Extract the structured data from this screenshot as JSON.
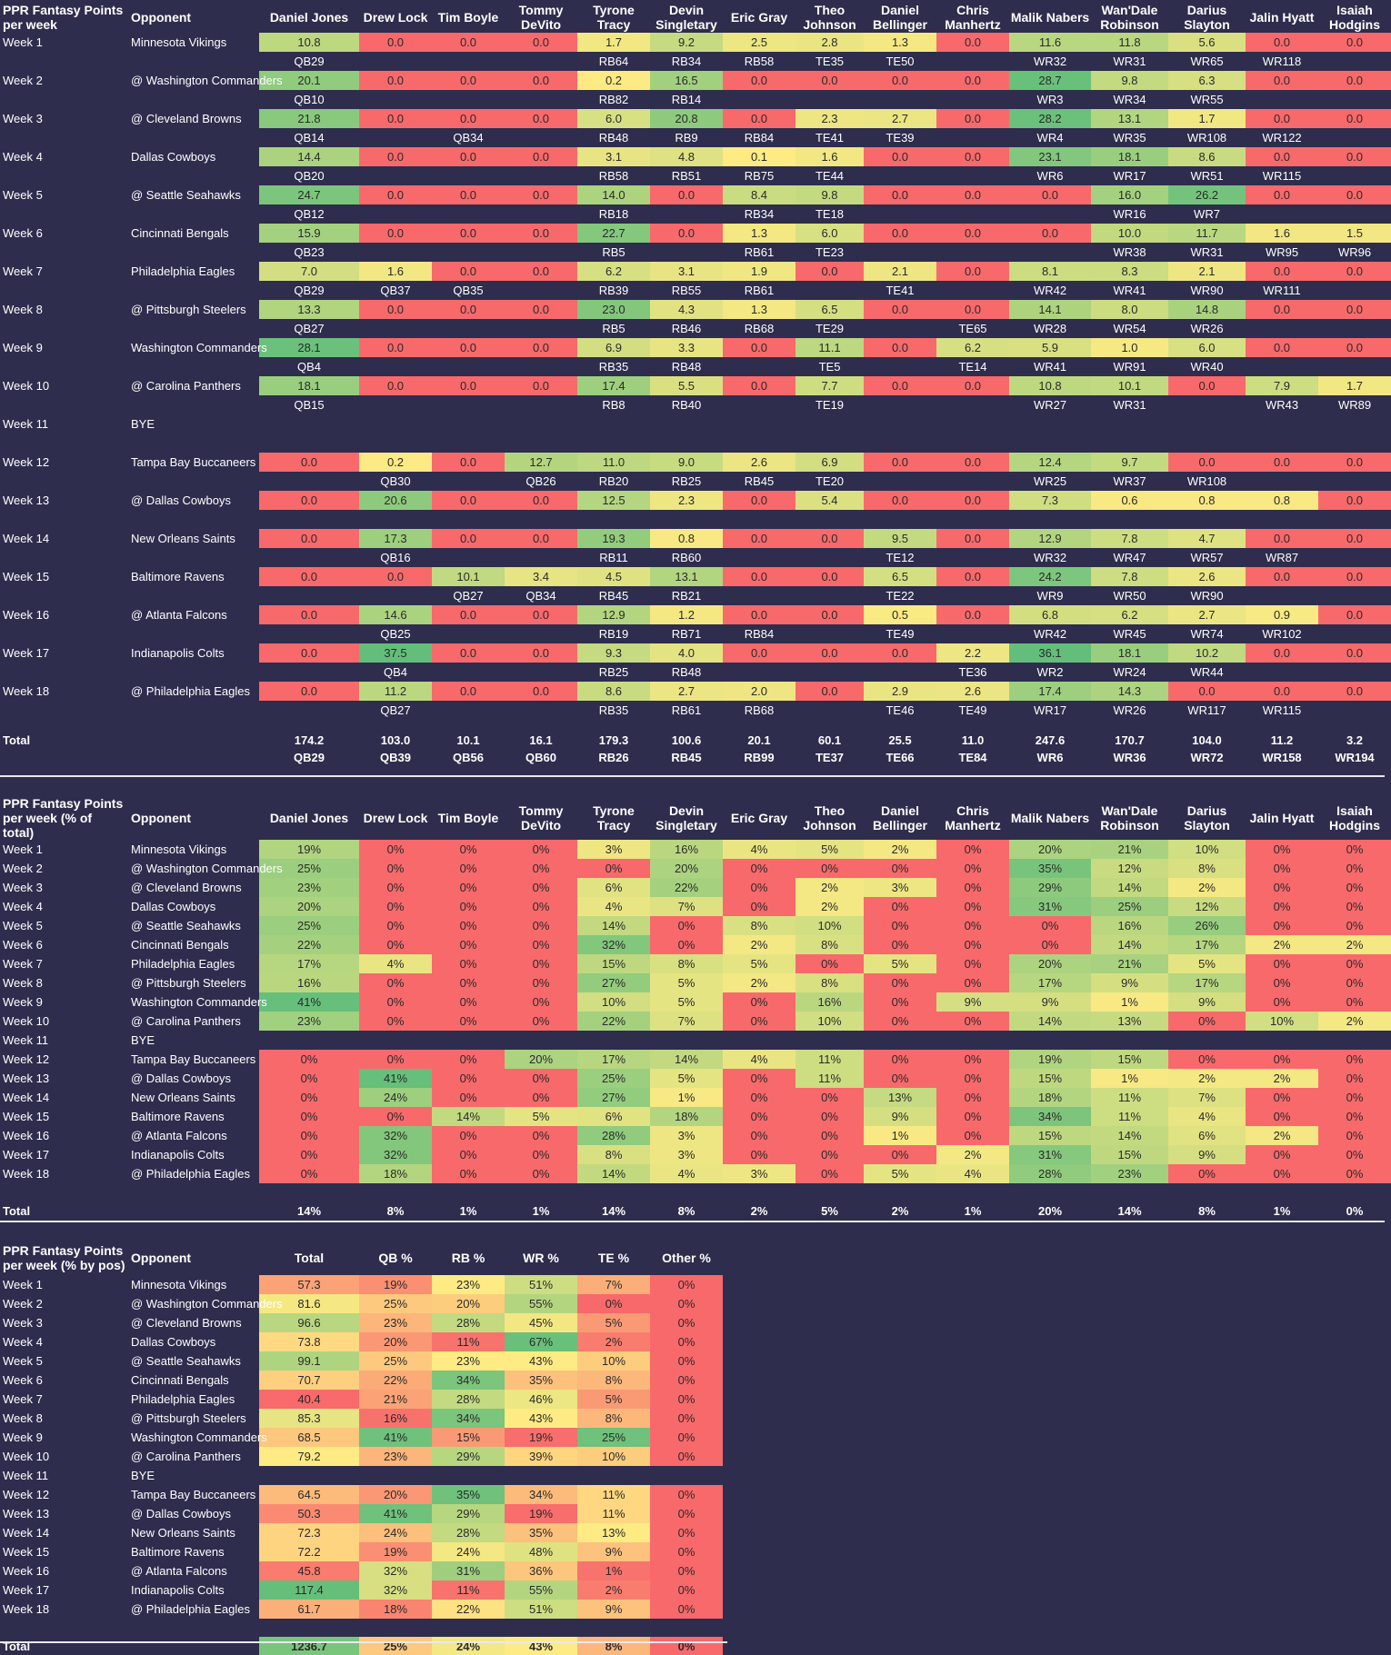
{
  "players": [
    "Daniel Jones",
    "Drew Lock",
    "Tim Boyle",
    "Tommy DeVito",
    "Tyrone Tracy",
    "Devin Singletary",
    "Eric Gray",
    "Theo Johnson",
    "Daniel Bellinger",
    "Chris Manhertz",
    "Malik Nabers",
    "Wan'Dale Robinson",
    "Darius Slayton",
    "Jalin Hyatt",
    "Isaiah Hodgins"
  ],
  "weeks": [
    {
      "week": "Week 1",
      "opponent": "Minnesota Vikings"
    },
    {
      "week": "Week 2",
      "opponent": "@ Washington Commanders"
    },
    {
      "week": "Week 3",
      "opponent": "@ Cleveland Browns"
    },
    {
      "week": "Week 4",
      "opponent": "Dallas Cowboys"
    },
    {
      "week": "Week 5",
      "opponent": "@ Seattle Seahawks"
    },
    {
      "week": "Week 6",
      "opponent": "Cincinnati Bengals"
    },
    {
      "week": "Week 7",
      "opponent": "Philadelphia Eagles"
    },
    {
      "week": "Week 8",
      "opponent": "@ Pittsburgh Steelers"
    },
    {
      "week": "Week 9",
      "opponent": "Washington Commanders"
    },
    {
      "week": "Week 10",
      "opponent": "@ Carolina Panthers"
    },
    {
      "week": "Week 11",
      "opponent": "BYE"
    },
    {
      "week": "Week 12",
      "opponent": "Tampa Bay Buccaneers"
    },
    {
      "week": "Week 13",
      "opponent": "@ Dallas Cowboys"
    },
    {
      "week": "Week 14",
      "opponent": "New Orleans Saints"
    },
    {
      "week": "Week 15",
      "opponent": "Baltimore Ravens"
    },
    {
      "week": "Week 16",
      "opponent": "@ Atlanta Falcons"
    },
    {
      "week": "Week 17",
      "opponent": "Indianapolis Colts"
    },
    {
      "week": "Week 18",
      "opponent": "@ Philadelphia Eagles"
    }
  ],
  "colors": {
    "background": "#2e2d4d",
    "heat_low": "#f8696b",
    "heat_mid": "#ffeb84",
    "heat_high": "#63be7b",
    "orange": "#fba978"
  },
  "table1": {
    "title": "PPR Fantasy Points per week",
    "opponent_header": "Opponent",
    "total_label": "Total",
    "points": [
      [
        "10.8",
        "0.0",
        "0.0",
        "0.0",
        "1.7",
        "9.2",
        "2.5",
        "2.8",
        "1.3",
        "0.0",
        "11.6",
        "11.8",
        "5.6",
        "0.0",
        "0.0"
      ],
      [
        "20.1",
        "0.0",
        "0.0",
        "0.0",
        "0.2",
        "16.5",
        "0.0",
        "0.0",
        "0.0",
        "0.0",
        "28.7",
        "9.8",
        "6.3",
        "0.0",
        "0.0"
      ],
      [
        "21.8",
        "0.0",
        "0.0",
        "0.0",
        "6.0",
        "20.8",
        "0.0",
        "2.3",
        "2.7",
        "0.0",
        "28.2",
        "13.1",
        "1.7",
        "0.0",
        "0.0"
      ],
      [
        "14.4",
        "0.0",
        "0.0",
        "0.0",
        "3.1",
        "4.8",
        "0.1",
        "1.6",
        "0.0",
        "0.0",
        "23.1",
        "18.1",
        "8.6",
        "0.0",
        "0.0"
      ],
      [
        "24.7",
        "0.0",
        "0.0",
        "0.0",
        "14.0",
        "0.0",
        "8.4",
        "9.8",
        "0.0",
        "0.0",
        "0.0",
        "16.0",
        "26.2",
        "0.0",
        "0.0"
      ],
      [
        "15.9",
        "0.0",
        "0.0",
        "0.0",
        "22.7",
        "0.0",
        "1.3",
        "6.0",
        "0.0",
        "0.0",
        "0.0",
        "10.0",
        "11.7",
        "1.6",
        "1.5"
      ],
      [
        "7.0",
        "1.6",
        "0.0",
        "0.0",
        "6.2",
        "3.1",
        "1.9",
        "0.0",
        "2.1",
        "0.0",
        "8.1",
        "8.3",
        "2.1",
        "0.0",
        "0.0"
      ],
      [
        "13.3",
        "0.0",
        "0.0",
        "0.0",
        "23.0",
        "4.3",
        "1.3",
        "6.5",
        "0.0",
        "0.0",
        "14.1",
        "8.0",
        "14.8",
        "0.0",
        "0.0"
      ],
      [
        "28.1",
        "0.0",
        "0.0",
        "0.0",
        "6.9",
        "3.3",
        "0.0",
        "11.1",
        "0.0",
        "6.2",
        "5.9",
        "1.0",
        "6.0",
        "0.0",
        "0.0"
      ],
      [
        "18.1",
        "0.0",
        "0.0",
        "0.0",
        "17.4",
        "5.5",
        "0.0",
        "7.7",
        "0.0",
        "0.0",
        "10.8",
        "10.1",
        "0.0",
        "7.9",
        "1.7"
      ],
      null,
      [
        "0.0",
        "0.2",
        "0.0",
        "12.7",
        "11.0",
        "9.0",
        "2.6",
        "6.9",
        "0.0",
        "0.0",
        "12.4",
        "9.7",
        "0.0",
        "0.0",
        "0.0"
      ],
      [
        "0.0",
        "20.6",
        "0.0",
        "0.0",
        "12.5",
        "2.3",
        "0.0",
        "5.4",
        "0.0",
        "0.0",
        "7.3",
        "0.6",
        "0.8",
        "0.8",
        "0.0"
      ],
      [
        "0.0",
        "17.3",
        "0.0",
        "0.0",
        "19.3",
        "0.8",
        "0.0",
        "0.0",
        "9.5",
        "0.0",
        "12.9",
        "7.8",
        "4.7",
        "0.0",
        "0.0"
      ],
      [
        "0.0",
        "0.0",
        "10.1",
        "3.4",
        "4.5",
        "13.1",
        "0.0",
        "0.0",
        "6.5",
        "0.0",
        "24.2",
        "7.8",
        "2.6",
        "0.0",
        "0.0"
      ],
      [
        "0.0",
        "14.6",
        "0.0",
        "0.0",
        "12.9",
        "1.2",
        "0.0",
        "0.0",
        "0.5",
        "0.0",
        "6.8",
        "6.2",
        "2.7",
        "0.9",
        "0.0"
      ],
      [
        "0.0",
        "37.5",
        "0.0",
        "0.0",
        "9.3",
        "4.0",
        "0.0",
        "0.0",
        "0.0",
        "2.2",
        "36.1",
        "18.1",
        "10.2",
        "0.0",
        "0.0"
      ],
      [
        "0.0",
        "11.2",
        "0.0",
        "0.0",
        "8.6",
        "2.7",
        "2.0",
        "0.0",
        "2.9",
        "2.6",
        "17.4",
        "14.3",
        "0.0",
        "0.0",
        "0.0"
      ]
    ],
    "ranks": [
      [
        "QB29",
        "",
        "",
        "",
        "RB64",
        "RB34",
        "RB58",
        "TE35",
        "TE50",
        "",
        "WR32",
        "WR31",
        "WR65",
        "WR118",
        ""
      ],
      [
        "QB10",
        "",
        "",
        "",
        "RB82",
        "RB14",
        "",
        "",
        "",
        "",
        "WR3",
        "WR34",
        "WR55",
        "",
        ""
      ],
      [
        "QB14",
        "",
        "QB34",
        "",
        "RB48",
        "RB9",
        "RB84",
        "TE41",
        "TE39",
        "",
        "WR4",
        "WR35",
        "WR108",
        "WR122",
        ""
      ],
      [
        "QB20",
        "",
        "",
        "",
        "RB58",
        "RB51",
        "RB75",
        "TE44",
        "",
        "",
        "WR6",
        "WR17",
        "WR51",
        "WR115",
        ""
      ],
      [
        "QB12",
        "",
        "",
        "",
        "RB18",
        "",
        "RB34",
        "TE18",
        "",
        "",
        "",
        "WR16",
        "WR7",
        "",
        ""
      ],
      [
        "QB23",
        "",
        "",
        "",
        "RB5",
        "",
        "RB61",
        "TE23",
        "",
        "",
        "",
        "WR38",
        "WR31",
        "WR95",
        "WR96"
      ],
      [
        "QB29",
        "QB37",
        "QB35",
        "",
        "RB39",
        "RB55",
        "RB61",
        "",
        "TE41",
        "",
        "WR42",
        "WR41",
        "WR90",
        "WR111",
        ""
      ],
      [
        "QB27",
        "",
        "",
        "",
        "RB5",
        "RB46",
        "RB68",
        "TE29",
        "",
        "TE65",
        "WR28",
        "WR54",
        "WR26",
        "",
        ""
      ],
      [
        "QB4",
        "",
        "",
        "",
        "RB35",
        "RB48",
        "",
        "TE5",
        "",
        "TE14",
        "WR41",
        "WR91",
        "WR40",
        "",
        ""
      ],
      [
        "QB15",
        "",
        "",
        "",
        "RB8",
        "RB40",
        "",
        "TE19",
        "",
        "",
        "WR27",
        "WR31",
        "",
        "WR43",
        "WR89"
      ],
      null,
      [
        "",
        "QB30",
        "",
        "QB26",
        "RB20",
        "RB25",
        "RB45",
        "TE20",
        "",
        "",
        "WR25",
        "WR37",
        "WR108",
        "",
        ""
      ],
      [
        "",
        "",
        "",
        "",
        "",
        "",
        "",
        "",
        "",
        "",
        "",
        "",
        "",
        "",
        ""
      ],
      [
        "",
        "QB16",
        "",
        "",
        "RB11",
        "RB60",
        "",
        "",
        "TE12",
        "",
        "WR32",
        "WR47",
        "WR57",
        "WR87",
        ""
      ],
      [
        "",
        "",
        "QB27",
        "QB34",
        "RB45",
        "RB21",
        "",
        "",
        "TE22",
        "",
        "WR9",
        "WR50",
        "WR90",
        "",
        ""
      ],
      [
        "",
        "QB25",
        "",
        "",
        "RB19",
        "RB71",
        "RB84",
        "",
        "TE49",
        "",
        "WR42",
        "WR45",
        "WR74",
        "WR102",
        ""
      ],
      [
        "",
        "QB4",
        "",
        "",
        "RB25",
        "RB48",
        "",
        "",
        "",
        "TE36",
        "WR2",
        "WR24",
        "WR44",
        "",
        ""
      ],
      [
        "",
        "QB27",
        "",
        "",
        "RB35",
        "RB61",
        "RB68",
        "",
        "TE46",
        "TE49",
        "WR17",
        "WR26",
        "WR117",
        "WR115",
        ""
      ]
    ],
    "totals": [
      "174.2",
      "103.0",
      "10.1",
      "16.1",
      "179.3",
      "100.6",
      "20.1",
      "60.1",
      "25.5",
      "11.0",
      "247.6",
      "170.7",
      "104.0",
      "11.2",
      "3.2"
    ],
    "total_ranks": [
      "QB29",
      "QB39",
      "QB56",
      "QB60",
      "RB26",
      "RB45",
      "RB99",
      "TE37",
      "TE66",
      "TE84",
      "WR6",
      "WR36",
      "WR72",
      "WR158",
      "WR194"
    ]
  },
  "table2": {
    "title": "PPR Fantasy Points per week (% of total)",
    "opponent_header": "Opponent",
    "total_label": "Total",
    "pcts": [
      [
        "19%",
        "0%",
        "0%",
        "0%",
        "3%",
        "16%",
        "4%",
        "5%",
        "2%",
        "0%",
        "20%",
        "21%",
        "10%",
        "0%",
        "0%"
      ],
      [
        "25%",
        "0%",
        "0%",
        "0%",
        "0%",
        "20%",
        "0%",
        "0%",
        "0%",
        "0%",
        "35%",
        "12%",
        "8%",
        "0%",
        "0%"
      ],
      [
        "23%",
        "0%",
        "0%",
        "0%",
        "6%",
        "22%",
        "0%",
        "2%",
        "3%",
        "0%",
        "29%",
        "14%",
        "2%",
        "0%",
        "0%"
      ],
      [
        "20%",
        "0%",
        "0%",
        "0%",
        "4%",
        "7%",
        "0%",
        "2%",
        "0%",
        "0%",
        "31%",
        "25%",
        "12%",
        "0%",
        "0%"
      ],
      [
        "25%",
        "0%",
        "0%",
        "0%",
        "14%",
        "0%",
        "8%",
        "10%",
        "0%",
        "0%",
        "0%",
        "16%",
        "26%",
        "0%",
        "0%"
      ],
      [
        "22%",
        "0%",
        "0%",
        "0%",
        "32%",
        "0%",
        "2%",
        "8%",
        "0%",
        "0%",
        "0%",
        "14%",
        "17%",
        "2%",
        "2%"
      ],
      [
        "17%",
        "4%",
        "0%",
        "0%",
        "15%",
        "8%",
        "5%",
        "0%",
        "5%",
        "0%",
        "20%",
        "21%",
        "5%",
        "0%",
        "0%"
      ],
      [
        "16%",
        "0%",
        "0%",
        "0%",
        "27%",
        "5%",
        "2%",
        "8%",
        "0%",
        "0%",
        "17%",
        "9%",
        "17%",
        "0%",
        "0%"
      ],
      [
        "41%",
        "0%",
        "0%",
        "0%",
        "10%",
        "5%",
        "0%",
        "16%",
        "0%",
        "9%",
        "9%",
        "1%",
        "9%",
        "0%",
        "0%"
      ],
      [
        "23%",
        "0%",
        "0%",
        "0%",
        "22%",
        "7%",
        "0%",
        "10%",
        "0%",
        "0%",
        "14%",
        "13%",
        "0%",
        "10%",
        "2%"
      ],
      null,
      [
        "0%",
        "0%",
        "0%",
        "20%",
        "17%",
        "14%",
        "4%",
        "11%",
        "0%",
        "0%",
        "19%",
        "15%",
        "0%",
        "0%",
        "0%"
      ],
      [
        "0%",
        "41%",
        "0%",
        "0%",
        "25%",
        "5%",
        "0%",
        "11%",
        "0%",
        "0%",
        "15%",
        "1%",
        "2%",
        "2%",
        "0%"
      ],
      [
        "0%",
        "24%",
        "0%",
        "0%",
        "27%",
        "1%",
        "0%",
        "0%",
        "13%",
        "0%",
        "18%",
        "11%",
        "7%",
        "0%",
        "0%"
      ],
      [
        "0%",
        "0%",
        "14%",
        "5%",
        "6%",
        "18%",
        "0%",
        "0%",
        "9%",
        "0%",
        "34%",
        "11%",
        "4%",
        "0%",
        "0%"
      ],
      [
        "0%",
        "32%",
        "0%",
        "0%",
        "28%",
        "3%",
        "0%",
        "0%",
        "1%",
        "0%",
        "15%",
        "14%",
        "6%",
        "2%",
        "0%"
      ],
      [
        "0%",
        "32%",
        "0%",
        "0%",
        "8%",
        "3%",
        "0%",
        "0%",
        "0%",
        "2%",
        "31%",
        "15%",
        "9%",
        "0%",
        "0%"
      ],
      [
        "0%",
        "18%",
        "0%",
        "0%",
        "14%",
        "4%",
        "3%",
        "0%",
        "5%",
        "4%",
        "28%",
        "23%",
        "0%",
        "0%",
        "0%"
      ]
    ],
    "totals": [
      "14%",
      "8%",
      "1%",
      "1%",
      "14%",
      "8%",
      "2%",
      "5%",
      "2%",
      "1%",
      "20%",
      "14%",
      "8%",
      "1%",
      "0%"
    ]
  },
  "table3": {
    "title": "PPR Fantasy Points per week (% by pos)",
    "headers": [
      "Opponent",
      "Total",
      "QB %",
      "RB %",
      "WR %",
      "TE %",
      "Other %"
    ],
    "total_label": "Total",
    "rows": [
      [
        "57.3",
        "19%",
        "23%",
        "51%",
        "7%",
        "0%"
      ],
      [
        "81.6",
        "25%",
        "20%",
        "55%",
        "0%",
        "0%"
      ],
      [
        "96.6",
        "23%",
        "28%",
        "45%",
        "5%",
        "0%"
      ],
      [
        "73.8",
        "20%",
        "11%",
        "67%",
        "2%",
        "0%"
      ],
      [
        "99.1",
        "25%",
        "23%",
        "43%",
        "10%",
        "0%"
      ],
      [
        "70.7",
        "22%",
        "34%",
        "35%",
        "8%",
        "0%"
      ],
      [
        "40.4",
        "21%",
        "28%",
        "46%",
        "5%",
        "0%"
      ],
      [
        "85.3",
        "16%",
        "34%",
        "43%",
        "8%",
        "0%"
      ],
      [
        "68.5",
        "41%",
        "15%",
        "19%",
        "25%",
        "0%"
      ],
      [
        "79.2",
        "23%",
        "29%",
        "39%",
        "10%",
        "0%"
      ],
      null,
      [
        "64.5",
        "20%",
        "35%",
        "34%",
        "11%",
        "0%"
      ],
      [
        "50.3",
        "41%",
        "29%",
        "19%",
        "11%",
        "0%"
      ],
      [
        "72.3",
        "24%",
        "28%",
        "35%",
        "13%",
        "0%"
      ],
      [
        "72.2",
        "19%",
        "24%",
        "48%",
        "9%",
        "0%"
      ],
      [
        "45.8",
        "32%",
        "31%",
        "36%",
        "1%",
        "0%"
      ],
      [
        "117.4",
        "32%",
        "11%",
        "55%",
        "2%",
        "0%"
      ],
      [
        "61.7",
        "18%",
        "22%",
        "51%",
        "9%",
        "0%"
      ]
    ],
    "totals": [
      "1236.7",
      "25%",
      "24%",
      "43%",
      "8%",
      "0%"
    ]
  }
}
